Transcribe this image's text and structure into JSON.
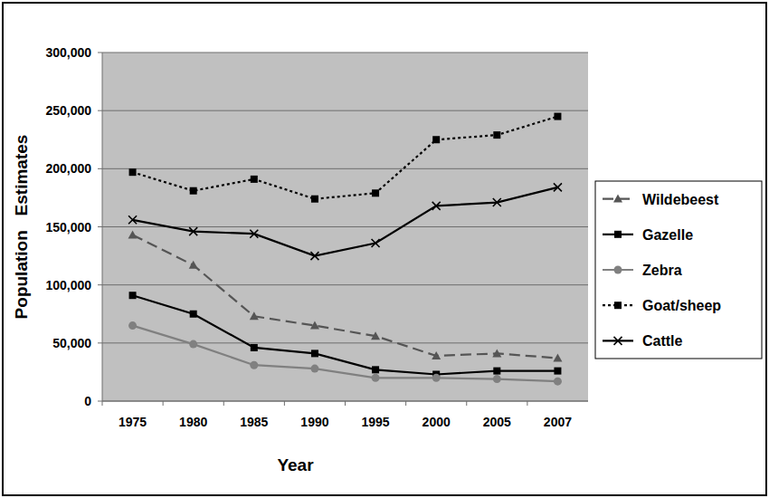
{
  "chart_data": {
    "type": "line",
    "x_label": "Year",
    "y_label": "Population   Estimates",
    "categories": [
      "1975",
      "1980",
      "1985",
      "1990",
      "1995",
      "2000",
      "2005",
      "2007"
    ],
    "series": [
      {
        "name": "Wildebeest",
        "color": "#555555",
        "marker": "triangle",
        "line_style": "dashed",
        "values": [
          143000,
          117000,
          73000,
          65000,
          56000,
          39000,
          41000,
          37000
        ]
      },
      {
        "name": "Gazelle",
        "color": "#000000",
        "marker": "square",
        "line_style": "solid",
        "values": [
          91000,
          75000,
          46000,
          41000,
          27000,
          23000,
          26000,
          26000
        ]
      },
      {
        "name": "Zebra",
        "color": "#808080",
        "marker": "circle",
        "line_style": "solid",
        "values": [
          65000,
          49000,
          31000,
          28000,
          20000,
          20000,
          19000,
          17000
        ]
      },
      {
        "name": "Goat/sheep",
        "color": "#000000",
        "marker": "square",
        "line_style": "dotted",
        "values": [
          197000,
          181000,
          191000,
          174000,
          179000,
          225000,
          229000,
          245000
        ]
      },
      {
        "name": "Cattle",
        "color": "#000000",
        "marker": "x",
        "line_style": "solid",
        "values": [
          156000,
          146000,
          144000,
          125000,
          136000,
          168000,
          171000,
          184000
        ]
      }
    ],
    "ylim": [
      0,
      300000
    ],
    "yticks": [
      0,
      {
        "value": 50000,
        "label": "50,000"
      },
      {
        "value": 100000,
        "label": "100,000"
      },
      {
        "value": 150000,
        "label": "150,000"
      },
      {
        "value": 200000,
        "label": "200,000"
      },
      {
        "value": 250000,
        "label": "250,000"
      },
      {
        "value": 300000,
        "label": "300,000"
      }
    ],
    "grid": true,
    "legend": "right"
  }
}
